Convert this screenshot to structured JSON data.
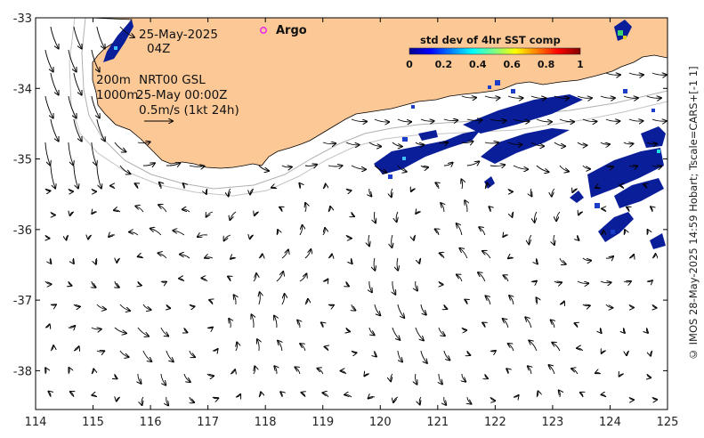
{
  "map": {
    "lon_ticks": [
      114,
      115,
      116,
      117,
      118,
      119,
      120,
      121,
      122,
      123,
      124,
      125
    ],
    "lat_ticks": [
      -33,
      -34,
      -35,
      -36,
      -37,
      -38
    ],
    "lon_range": [
      114,
      125
    ],
    "lat_range": [
      -38.55,
      -33
    ]
  },
  "labels": {
    "date": "25-May-2025",
    "hour": "04Z",
    "depth_200": "200m",
    "depth_1000": "1000m",
    "product": "NRT00 GSL",
    "product_time": "25-May 00:00Z",
    "scale": "0.5m/s (1kt 24h)",
    "argo": "Argo"
  },
  "colorbar": {
    "title": "std dev of 4hr SST comp",
    "ticks": [
      "0",
      "0.2",
      "0.4",
      "0.6",
      "0.8",
      "1"
    ]
  },
  "credit": "© IMOS 28-May-2025 14:59 Hobart; Tscale=CARS+[-1 1]",
  "colors": {
    "land": "#fcc896",
    "argo_marker": "#ee22ee",
    "sst_low": "#0a1e9a"
  }
}
